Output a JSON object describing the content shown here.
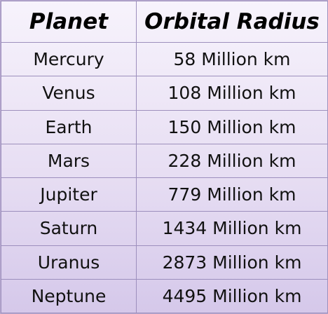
{
  "table": {
    "headers": [
      "Planet",
      "Orbital Radius"
    ],
    "rows": [
      [
        "Mercury",
        "58 Million km"
      ],
      [
        "Venus",
        "108 Million km"
      ],
      [
        "Earth",
        "150 Million km"
      ],
      [
        "Mars",
        "228 Million km"
      ],
      [
        "Jupiter",
        "779 Million km"
      ],
      [
        "Saturn",
        "1434 Million km"
      ],
      [
        "Uranus",
        "2873 Million km"
      ],
      [
        "Neptune",
        "4495 Million km"
      ]
    ]
  },
  "colors": {
    "background_top": "#f7f3fc",
    "background_bottom": "#d5c8ea",
    "grid_line": "#9d8fbd"
  }
}
